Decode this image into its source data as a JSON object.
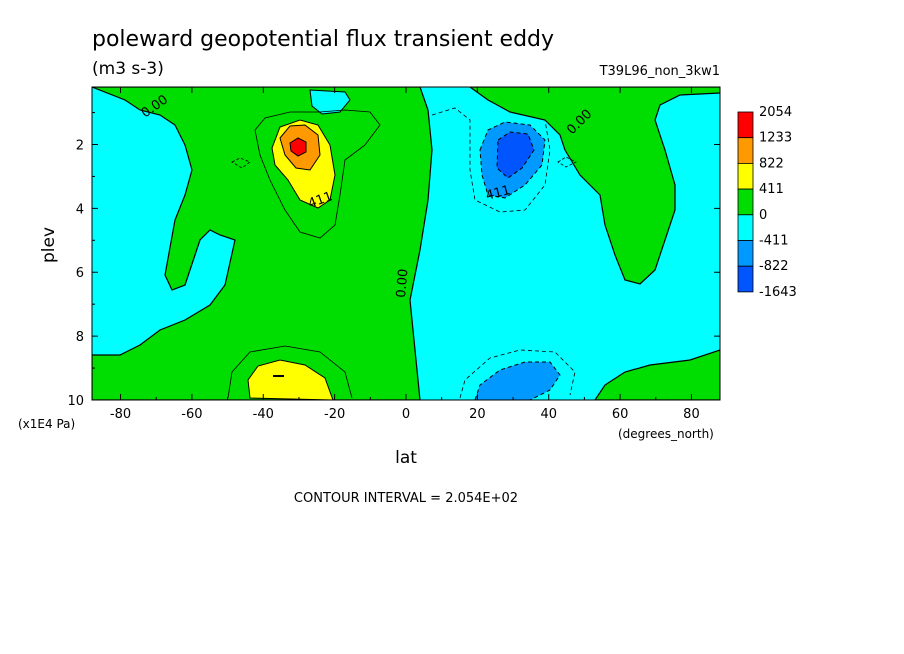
{
  "chart_data": {
    "type": "heatmap",
    "title": "poleward geopotential flux transient eddy",
    "units": "(m3 s-3)",
    "dataset_label": "T39L96_non_3kw1",
    "xlabel": "lat",
    "x_units": "(degrees_north)",
    "ylabel": "plev",
    "y_units": "(x1E4 Pa)",
    "xlim": [
      -88,
      88
    ],
    "ylim": [
      10,
      0.2
    ],
    "x_ticks": [
      -80,
      -60,
      -40,
      -20,
      0,
      20,
      40,
      60,
      80
    ],
    "x_tick_labels": [
      "-80",
      "-60",
      "-40",
      "-20",
      "0",
      "20",
      "40",
      "60",
      "80"
    ],
    "y_ticks": [
      2,
      4,
      6,
      8,
      10
    ],
    "y_tick_labels": [
      "2",
      "4",
      "6",
      "8",
      "10"
    ],
    "contour_interval_text": "CONTOUR INTERVAL = 2.054E+02",
    "contour_labels": [
      "0.00",
      "411",
      "0.00",
      "411",
      "0.00"
    ],
    "colorbar": {
      "levels": [
        "2054",
        "1233",
        "822",
        "411",
        "0",
        "-411",
        "-822",
        "-1643"
      ],
      "colors": [
        "#ff0000",
        "#ff9900",
        "#ffff00",
        "#00dd00",
        "#00ffff",
        "#0099ff",
        "#0055ff"
      ]
    },
    "features": [
      {
        "name": "positive maximum",
        "lat": -30,
        "plev": 2.0,
        "value": 2054
      },
      {
        "name": "positive lobe near surface",
        "lat": -35,
        "plev": 9.4,
        "value": 822
      },
      {
        "name": "negative minimum",
        "lat": 30,
        "plev": 2.3,
        "value": -1643
      },
      {
        "name": "negative lobe near surface",
        "lat": 30,
        "plev": 9.6,
        "value": -822
      }
    ],
    "grid": false
  }
}
